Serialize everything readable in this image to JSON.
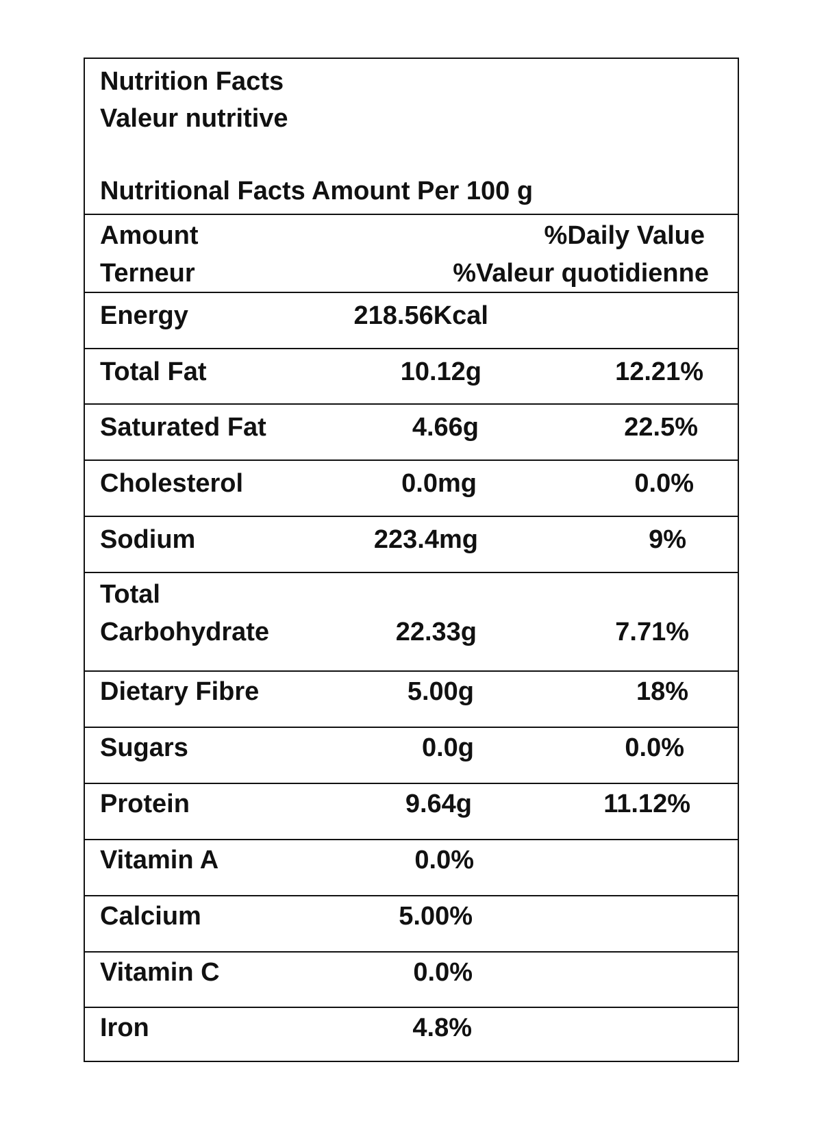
{
  "title": {
    "line1": "Nutrition Facts",
    "line2": "Valeur nutritive",
    "serving": "Nutritional Facts Amount Per 100 g"
  },
  "header": {
    "amount_en": "Amount",
    "amount_fr": "Terneur",
    "dv_en": "%Daily Value",
    "dv_fr": "%Valeur quotidienne"
  },
  "rows": [
    {
      "name": "Energy",
      "amount": "218.56Kcal",
      "dv": ""
    },
    {
      "name": "Total Fat",
      "amount": "10.12g",
      "dv": "12.21%"
    },
    {
      "name": "Saturated Fat",
      "amount": "4.66g",
      "dv": "22.5%"
    },
    {
      "name": "Cholesterol",
      "amount": "0.0mg",
      "dv": "0.0%"
    },
    {
      "name": "Sodium",
      "amount": "223.4mg",
      "dv": "9%"
    },
    {
      "name_line1": "Total",
      "name_line2": "Carbohydrate",
      "amount": "22.33g",
      "dv": "7.71%"
    },
    {
      "name": "Dietary Fibre",
      "amount": "5.00g",
      "dv": "18%"
    },
    {
      "name": "Sugars",
      "amount": "0.0g",
      "dv": "0.0%"
    },
    {
      "name": "Protein",
      "amount": "9.64g",
      "dv": "11.12%"
    },
    {
      "name": "Vitamin A",
      "amount": "0.0%",
      "dv": ""
    },
    {
      "name": "Calcium",
      "amount": "5.00%",
      "dv": ""
    },
    {
      "name": "Vitamin C",
      "amount": "0.0%",
      "dv": ""
    },
    {
      "name": "Iron",
      "amount": "4.8%",
      "dv": ""
    }
  ]
}
